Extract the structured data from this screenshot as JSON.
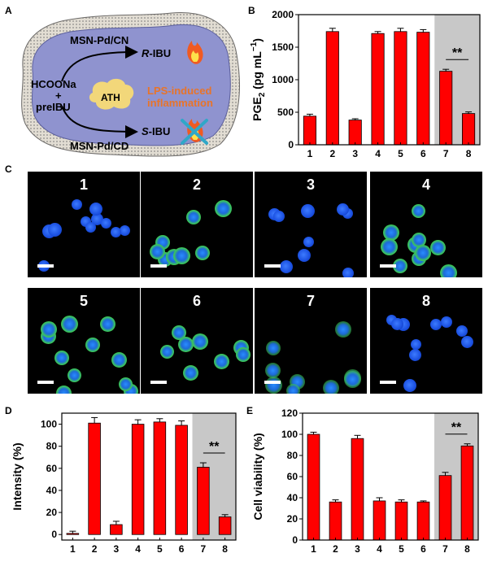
{
  "panels": {
    "A": {
      "letter": "A",
      "reagent_line1": "HCOONa",
      "reagent_plus": "+",
      "reagent_line2": "preIBU",
      "catalyst_top": "MSN-Pd/CN",
      "catalyst_bottom": "MSN-Pd/CD",
      "product_top_prefix": "R",
      "product_top_suffix": "-IBU",
      "product_bottom_prefix": "S",
      "product_bottom_suffix": "-IBU",
      "center_label": "ATH",
      "effect_line1": "LPS-induced",
      "effect_line2": "inflammation",
      "colors": {
        "cell_fill": "#8f93cf",
        "membrane": "#d8d2c8",
        "ath": "#f2d77a",
        "effect_text": "#e8742a",
        "flame": "#f05a22"
      }
    },
    "B": {
      "letter": "B"
    },
    "C": {
      "letter": "C",
      "images": [
        {
          "label": "1",
          "green": 0.0
        },
        {
          "label": "2",
          "green": 1.0
        },
        {
          "label": "3",
          "green": 0.1
        },
        {
          "label": "4",
          "green": 1.0
        },
        {
          "label": "5",
          "green": 1.0
        },
        {
          "label": "6",
          "green": 1.0
        },
        {
          "label": "7",
          "green": 0.6
        },
        {
          "label": "8",
          "green": 0.15
        }
      ]
    },
    "D": {
      "letter": "D"
    },
    "E": {
      "letter": "E"
    }
  },
  "chart_data": [
    {
      "panel": "B",
      "type": "bar",
      "categories": [
        "1",
        "2",
        "3",
        "4",
        "5",
        "6",
        "7",
        "8"
      ],
      "values": [
        440,
        1740,
        380,
        1710,
        1740,
        1730,
        1130,
        480
      ],
      "errors": [
        30,
        50,
        20,
        30,
        50,
        40,
        30,
        25
      ],
      "ylabel": "PGE2 (pg mL-1)",
      "ylabel_main": "PGE",
      "ylabel_sub": "2",
      "ylabel_unit_pre": " (pg mL",
      "ylabel_unit_sup": "−1",
      "ylabel_unit_post": ")",
      "ylim": [
        0,
        2000
      ],
      "yticks": [
        "0",
        "500",
        "1000",
        "1500",
        "2000"
      ],
      "highlight_categories": [
        "7",
        "8"
      ],
      "significance": "**",
      "bar_color": "#ff0000",
      "highlight_color": "#c8c8c8"
    },
    {
      "panel": "D",
      "type": "bar",
      "categories": [
        "1",
        "2",
        "3",
        "4",
        "5",
        "6",
        "7",
        "8"
      ],
      "values": [
        1,
        101,
        9,
        100,
        102,
        99,
        61,
        16
      ],
      "errors": [
        2,
        5,
        3,
        4,
        3,
        4,
        4,
        2
      ],
      "ylabel": "Intensity (%)",
      "ylim": [
        -5,
        110
      ],
      "yticks": [
        "0",
        "20",
        "40",
        "60",
        "80",
        "100"
      ],
      "highlight_categories": [
        "7",
        "8"
      ],
      "significance": "**",
      "bar_color": "#ff0000",
      "highlight_color": "#c8c8c8"
    },
    {
      "panel": "E",
      "type": "bar",
      "categories": [
        "1",
        "2",
        "3",
        "4",
        "5",
        "6",
        "7",
        "8"
      ],
      "values": [
        100,
        36,
        96,
        37,
        36,
        36,
        61,
        89
      ],
      "errors": [
        2,
        2,
        3,
        3,
        2,
        1,
        3,
        2
      ],
      "ylabel": "Cell viability (%)",
      "ylim": [
        0,
        120
      ],
      "yticks": [
        "0",
        "20",
        "40",
        "60",
        "80",
        "100",
        "120"
      ],
      "highlight_categories": [
        "7",
        "8"
      ],
      "significance": "**",
      "bar_color": "#ff0000",
      "highlight_color": "#c8c8c8"
    }
  ]
}
